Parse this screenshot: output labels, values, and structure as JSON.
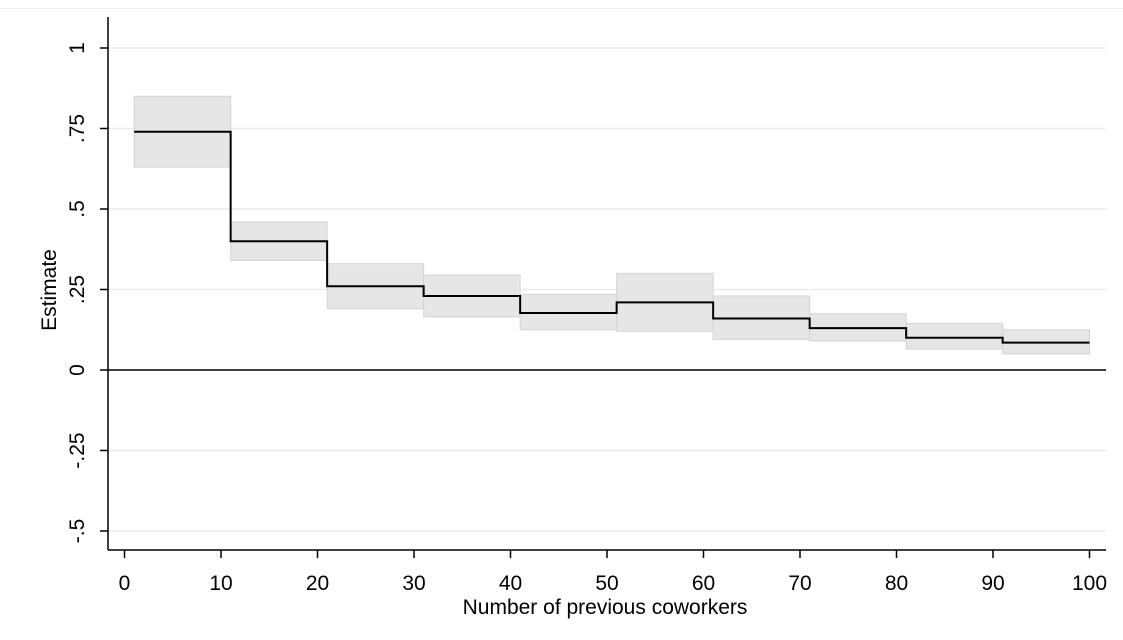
{
  "chart_data": {
    "type": "line",
    "subtype": "step-with-confidence-band",
    "xlabel": "Number of previous coworkers",
    "ylabel": "Estimate",
    "xlim": [
      1,
      100
    ],
    "ylim": [
      -0.5,
      1
    ],
    "x_ticks": [
      0,
      10,
      20,
      30,
      40,
      50,
      60,
      70,
      80,
      90,
      100
    ],
    "x_tick_labels": [
      "0",
      "10",
      "20",
      "30",
      "40",
      "50",
      "60",
      "70",
      "80",
      "90",
      "100"
    ],
    "y_ticks": [
      -0.5,
      -0.25,
      0,
      0.25,
      0.5,
      0.75,
      1
    ],
    "y_tick_labels": [
      "-.5",
      "-.25",
      "0",
      ".25",
      ".5",
      ".75",
      "1"
    ],
    "grid": "horizontal",
    "reference_line": 0,
    "band_color": "#e6e6e6",
    "line_color": "#000000",
    "segments": [
      {
        "x0": 1,
        "x1": 11,
        "estimate": 0.74,
        "ci_low": 0.63,
        "ci_high": 0.85
      },
      {
        "x0": 11,
        "x1": 21,
        "estimate": 0.4,
        "ci_low": 0.34,
        "ci_high": 0.46
      },
      {
        "x0": 21,
        "x1": 31,
        "estimate": 0.26,
        "ci_low": 0.19,
        "ci_high": 0.33
      },
      {
        "x0": 31,
        "x1": 41,
        "estimate": 0.23,
        "ci_low": 0.165,
        "ci_high": 0.295
      },
      {
        "x0": 41,
        "x1": 51,
        "estimate": 0.177,
        "ci_low": 0.125,
        "ci_high": 0.235
      },
      {
        "x0": 51,
        "x1": 61,
        "estimate": 0.21,
        "ci_low": 0.12,
        "ci_high": 0.3
      },
      {
        "x0": 61,
        "x1": 71,
        "estimate": 0.16,
        "ci_low": 0.095,
        "ci_high": 0.23
      },
      {
        "x0": 71,
        "x1": 81,
        "estimate": 0.13,
        "ci_low": 0.09,
        "ci_high": 0.175
      },
      {
        "x0": 81,
        "x1": 91,
        "estimate": 0.1,
        "ci_low": 0.065,
        "ci_high": 0.145
      },
      {
        "x0": 91,
        "x1": 100,
        "estimate": 0.085,
        "ci_low": 0.05,
        "ci_high": 0.125
      }
    ]
  }
}
